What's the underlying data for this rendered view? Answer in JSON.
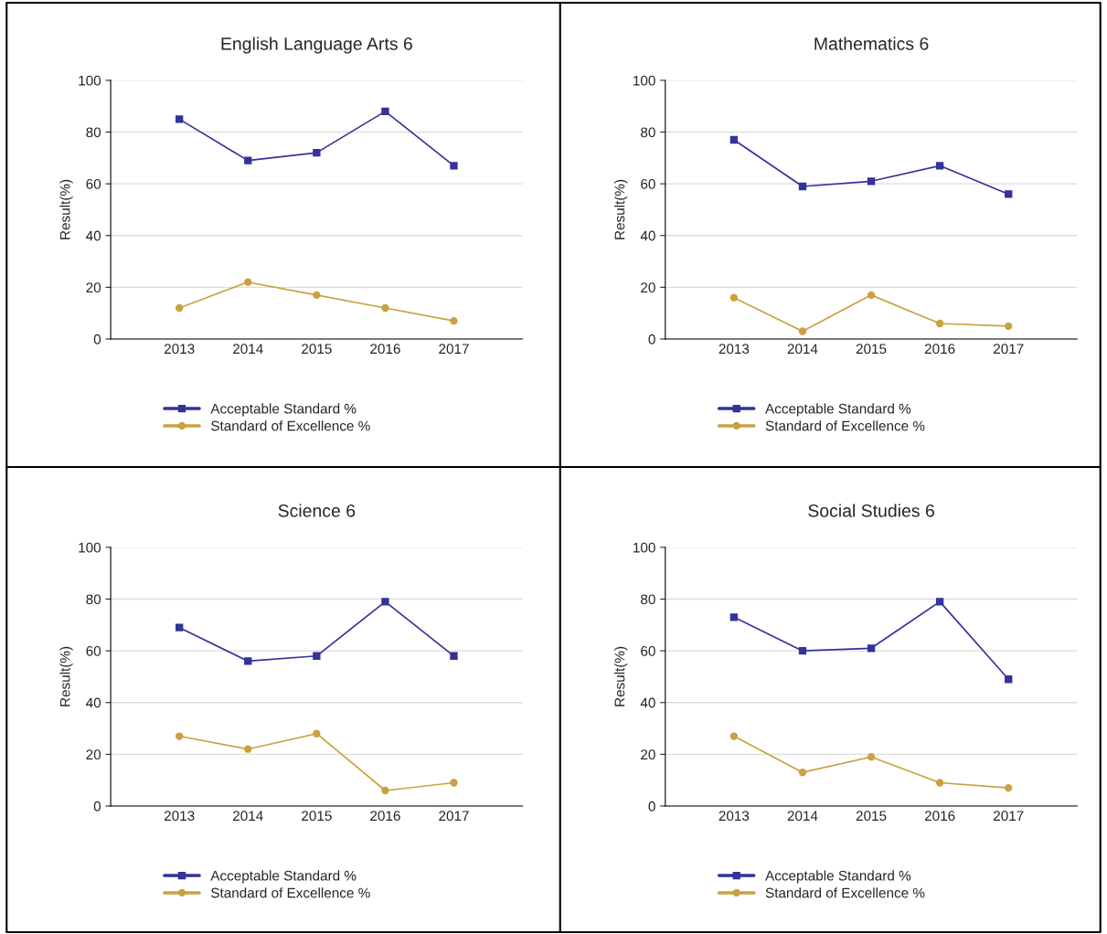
{
  "chart_data": [
    {
      "type": "line",
      "title": "English Language Arts 6",
      "ylabel": "Result(%)",
      "categories": [
        "2013",
        "2014",
        "2015",
        "2016",
        "2017"
      ],
      "ylim": [
        0,
        100
      ],
      "yticks": [
        0,
        20,
        40,
        60,
        80,
        100
      ],
      "grid": "y",
      "legend": "bottom",
      "series": [
        {
          "name": "Acceptable Standard %",
          "color": "#333399",
          "marker": "square",
          "values": [
            85,
            69,
            72,
            88,
            67
          ]
        },
        {
          "name": "Standard of Excellence %",
          "color": "#c9a13f",
          "marker": "circle",
          "values": [
            12,
            22,
            17,
            12,
            7
          ]
        }
      ]
    },
    {
      "type": "line",
      "title": "Mathematics 6",
      "ylabel": "Result(%)",
      "categories": [
        "2013",
        "2014",
        "2015",
        "2016",
        "2017"
      ],
      "ylim": [
        0,
        100
      ],
      "yticks": [
        0,
        20,
        40,
        60,
        80,
        100
      ],
      "grid": "y",
      "legend": "bottom",
      "series": [
        {
          "name": "Acceptable Standard %",
          "color": "#333399",
          "marker": "square",
          "values": [
            77,
            59,
            61,
            67,
            56
          ]
        },
        {
          "name": "Standard of Excellence %",
          "color": "#c9a13f",
          "marker": "circle",
          "values": [
            16,
            3,
            17,
            6,
            5
          ]
        }
      ]
    },
    {
      "type": "line",
      "title": "Science 6",
      "ylabel": "Result(%)",
      "categories": [
        "2013",
        "2014",
        "2015",
        "2016",
        "2017"
      ],
      "ylim": [
        0,
        100
      ],
      "yticks": [
        0,
        20,
        40,
        60,
        80,
        100
      ],
      "grid": "y",
      "legend": "bottom",
      "series": [
        {
          "name": "Acceptable Standard %",
          "color": "#333399",
          "marker": "square",
          "values": [
            69,
            56,
            58,
            79,
            58
          ]
        },
        {
          "name": "Standard of Excellence %",
          "color": "#c9a13f",
          "marker": "circle",
          "values": [
            27,
            22,
            28,
            6,
            9
          ]
        }
      ]
    },
    {
      "type": "line",
      "title": "Social Studies 6",
      "ylabel": "Result(%)",
      "categories": [
        "2013",
        "2014",
        "2015",
        "2016",
        "2017"
      ],
      "ylim": [
        0,
        100
      ],
      "yticks": [
        0,
        20,
        40,
        60,
        80,
        100
      ],
      "grid": "y",
      "legend": "bottom",
      "series": [
        {
          "name": "Acceptable Standard %",
          "color": "#333399",
          "marker": "square",
          "values": [
            73,
            60,
            61,
            79,
            49
          ]
        },
        {
          "name": "Standard of Excellence %",
          "color": "#c9a13f",
          "marker": "circle",
          "values": [
            27,
            13,
            19,
            9,
            7
          ]
        }
      ]
    }
  ]
}
